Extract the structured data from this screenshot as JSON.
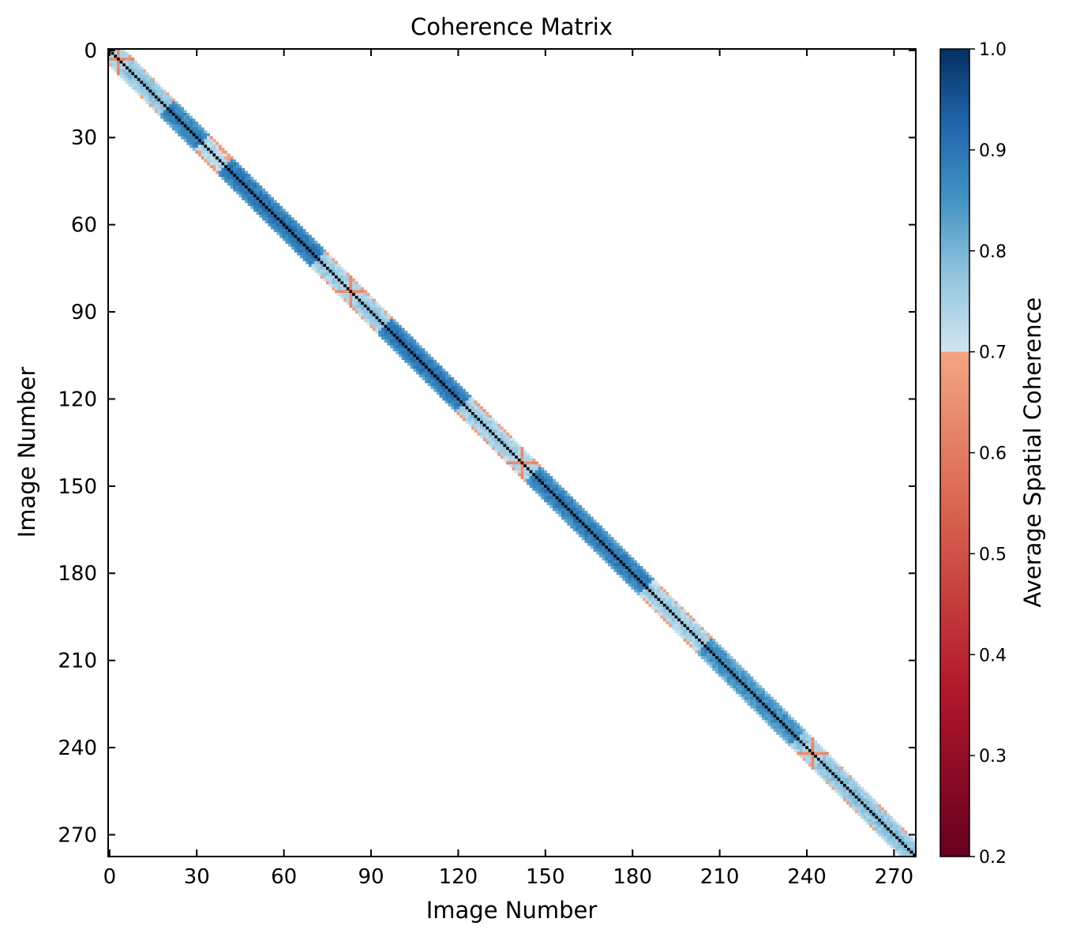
{
  "chart_data": {
    "type": "heatmap",
    "title": "Coherence Matrix",
    "xlabel": "Image Number",
    "ylabel": "Image Number",
    "n_images": 278,
    "xlim": [
      0,
      278
    ],
    "ylim": [
      278,
      0
    ],
    "x_ticks": [
      0,
      30,
      60,
      90,
      120,
      150,
      180,
      210,
      240,
      270
    ],
    "y_ticks": [
      0,
      30,
      60,
      90,
      120,
      150,
      180,
      210,
      240,
      270
    ],
    "band_half_width": 5,
    "diagonal_value": 1.0,
    "low_coherence_epochs": [
      3,
      83,
      142,
      242
    ],
    "colorbar": {
      "label": "Average Spatial Coherence",
      "min": 0.2,
      "max": 1.0,
      "threshold": 0.7,
      "ticks": [
        0.2,
        0.3,
        0.4,
        0.5,
        0.6,
        0.7,
        0.8,
        0.9,
        1.0
      ],
      "colors_below_threshold": [
        "#67001f",
        "#b2182b",
        "#d6604d",
        "#f4a582"
      ],
      "colors_above_threshold": [
        "#d1e5f0",
        "#92c5de",
        "#4393c3",
        "#2166ac",
        "#053061"
      ]
    },
    "grid": false
  }
}
